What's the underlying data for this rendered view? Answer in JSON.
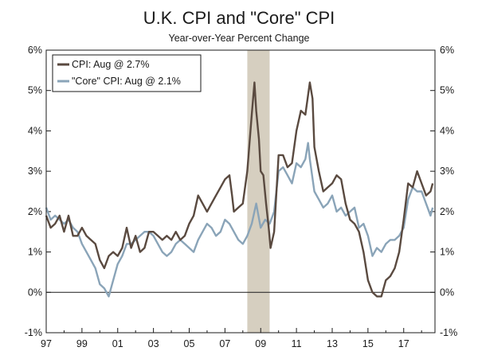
{
  "chart_data": {
    "type": "line",
    "title": "U.K. CPI and \"Core\" CPI",
    "subtitle": "Year-over-Year Percent Change",
    "ylim": [
      -1,
      6
    ],
    "xlim": [
      1997,
      2018.75
    ],
    "y_ticks": [
      {
        "value": 6,
        "label": "6%"
      },
      {
        "value": 5,
        "label": "5%"
      },
      {
        "value": 4,
        "label": "4%"
      },
      {
        "value": 3,
        "label": "3%"
      },
      {
        "value": 2,
        "label": "2%"
      },
      {
        "value": 1,
        "label": "1%"
      },
      {
        "value": 0,
        "label": "0%"
      },
      {
        "value": -1,
        "label": "-1%"
      }
    ],
    "x_ticks": [
      {
        "value": 1997,
        "label": "97"
      },
      {
        "value": 1999,
        "label": "99"
      },
      {
        "value": 2001,
        "label": "01"
      },
      {
        "value": 2003,
        "label": "03"
      },
      {
        "value": 2005,
        "label": "05"
      },
      {
        "value": 2007,
        "label": "07"
      },
      {
        "value": 2009,
        "label": "09"
      },
      {
        "value": 2011,
        "label": "11"
      },
      {
        "value": 2013,
        "label": "13"
      },
      {
        "value": 2015,
        "label": "15"
      },
      {
        "value": 2017,
        "label": "17"
      }
    ],
    "recession": {
      "start": 2008.25,
      "end": 2009.5
    },
    "zero_line": 0,
    "colors": {
      "cpi": "#5a4a40",
      "core": "#8aa4b8",
      "recession": "#d6cfc0",
      "axis": "#1a1a1a"
    },
    "series": [
      {
        "name": "CPI: Aug @ 2.7%",
        "key": "cpi",
        "points": [
          [
            1997.0,
            1.9
          ],
          [
            1997.25,
            1.6
          ],
          [
            1997.5,
            1.7
          ],
          [
            1997.75,
            1.9
          ],
          [
            1998.0,
            1.5
          ],
          [
            1998.25,
            1.9
          ],
          [
            1998.5,
            1.4
          ],
          [
            1998.75,
            1.4
          ],
          [
            1999.0,
            1.6
          ],
          [
            1999.25,
            1.4
          ],
          [
            1999.5,
            1.3
          ],
          [
            1999.75,
            1.2
          ],
          [
            2000.0,
            0.8
          ],
          [
            2000.25,
            0.6
          ],
          [
            2000.5,
            0.9
          ],
          [
            2000.75,
            1.0
          ],
          [
            2001.0,
            0.9
          ],
          [
            2001.25,
            1.1
          ],
          [
            2001.5,
            1.6
          ],
          [
            2001.75,
            1.1
          ],
          [
            2002.0,
            1.4
          ],
          [
            2002.25,
            1.0
          ],
          [
            2002.5,
            1.1
          ],
          [
            2002.75,
            1.5
          ],
          [
            2003.0,
            1.5
          ],
          [
            2003.25,
            1.4
          ],
          [
            2003.5,
            1.3
          ],
          [
            2003.75,
            1.4
          ],
          [
            2004.0,
            1.3
          ],
          [
            2004.25,
            1.5
          ],
          [
            2004.5,
            1.3
          ],
          [
            2004.75,
            1.4
          ],
          [
            2005.0,
            1.7
          ],
          [
            2005.25,
            1.9
          ],
          [
            2005.5,
            2.4
          ],
          [
            2005.75,
            2.2
          ],
          [
            2006.0,
            2.0
          ],
          [
            2006.25,
            2.2
          ],
          [
            2006.5,
            2.4
          ],
          [
            2006.75,
            2.6
          ],
          [
            2007.0,
            2.8
          ],
          [
            2007.25,
            2.9
          ],
          [
            2007.4,
            2.4
          ],
          [
            2007.5,
            2.0
          ],
          [
            2007.75,
            2.1
          ],
          [
            2008.0,
            2.2
          ],
          [
            2008.25,
            3.0
          ],
          [
            2008.5,
            4.4
          ],
          [
            2008.65,
            5.2
          ],
          [
            2008.75,
            4.5
          ],
          [
            2008.9,
            3.8
          ],
          [
            2009.0,
            3.0
          ],
          [
            2009.15,
            2.9
          ],
          [
            2009.3,
            2.2
          ],
          [
            2009.45,
            1.6
          ],
          [
            2009.55,
            1.1
          ],
          [
            2009.75,
            1.5
          ],
          [
            2010.0,
            3.4
          ],
          [
            2010.25,
            3.4
          ],
          [
            2010.5,
            3.1
          ],
          [
            2010.75,
            3.2
          ],
          [
            2011.0,
            4.0
          ],
          [
            2011.25,
            4.5
          ],
          [
            2011.5,
            4.4
          ],
          [
            2011.75,
            5.2
          ],
          [
            2011.9,
            4.8
          ],
          [
            2012.0,
            3.6
          ],
          [
            2012.25,
            3.0
          ],
          [
            2012.5,
            2.5
          ],
          [
            2012.75,
            2.6
          ],
          [
            2013.0,
            2.7
          ],
          [
            2013.25,
            2.9
          ],
          [
            2013.5,
            2.8
          ],
          [
            2013.75,
            2.2
          ],
          [
            2014.0,
            1.8
          ],
          [
            2014.25,
            1.7
          ],
          [
            2014.5,
            1.5
          ],
          [
            2014.75,
            1.0
          ],
          [
            2015.0,
            0.3
          ],
          [
            2015.25,
            0.0
          ],
          [
            2015.5,
            -0.1
          ],
          [
            2015.75,
            -0.1
          ],
          [
            2016.0,
            0.3
          ],
          [
            2016.25,
            0.4
          ],
          [
            2016.5,
            0.6
          ],
          [
            2016.75,
            1.0
          ],
          [
            2017.0,
            1.8
          ],
          [
            2017.25,
            2.7
          ],
          [
            2017.5,
            2.6
          ],
          [
            2017.75,
            3.0
          ],
          [
            2018.0,
            2.7
          ],
          [
            2018.25,
            2.4
          ],
          [
            2018.5,
            2.5
          ],
          [
            2018.62,
            2.7
          ]
        ]
      },
      {
        "name": "\"Core\" CPI: Aug @ 2.1%",
        "key": "core",
        "points": [
          [
            1997.0,
            2.1
          ],
          [
            1997.25,
            1.8
          ],
          [
            1997.5,
            1.9
          ],
          [
            1997.75,
            1.8
          ],
          [
            1998.0,
            1.7
          ],
          [
            1998.25,
            1.8
          ],
          [
            1998.5,
            1.6
          ],
          [
            1998.75,
            1.5
          ],
          [
            1999.0,
            1.2
          ],
          [
            1999.25,
            1.0
          ],
          [
            1999.5,
            0.8
          ],
          [
            1999.75,
            0.6
          ],
          [
            2000.0,
            0.2
          ],
          [
            2000.25,
            0.1
          ],
          [
            2000.5,
            -0.1
          ],
          [
            2000.75,
            0.3
          ],
          [
            2001.0,
            0.7
          ],
          [
            2001.25,
            0.9
          ],
          [
            2001.5,
            1.2
          ],
          [
            2001.75,
            1.2
          ],
          [
            2002.0,
            1.3
          ],
          [
            2002.25,
            1.4
          ],
          [
            2002.5,
            1.5
          ],
          [
            2002.75,
            1.5
          ],
          [
            2003.0,
            1.4
          ],
          [
            2003.25,
            1.2
          ],
          [
            2003.5,
            1.0
          ],
          [
            2003.75,
            0.9
          ],
          [
            2004.0,
            1.0
          ],
          [
            2004.25,
            1.2
          ],
          [
            2004.5,
            1.3
          ],
          [
            2004.75,
            1.2
          ],
          [
            2005.0,
            1.1
          ],
          [
            2005.25,
            1.0
          ],
          [
            2005.5,
            1.3
          ],
          [
            2005.75,
            1.5
          ],
          [
            2006.0,
            1.7
          ],
          [
            2006.25,
            1.6
          ],
          [
            2006.5,
            1.4
          ],
          [
            2006.75,
            1.5
          ],
          [
            2007.0,
            1.8
          ],
          [
            2007.25,
            1.7
          ],
          [
            2007.5,
            1.5
          ],
          [
            2007.75,
            1.3
          ],
          [
            2008.0,
            1.2
          ],
          [
            2008.25,
            1.4
          ],
          [
            2008.5,
            1.7
          ],
          [
            2008.75,
            2.2
          ],
          [
            2009.0,
            1.6
          ],
          [
            2009.25,
            1.8
          ],
          [
            2009.5,
            1.7
          ],
          [
            2009.75,
            2.0
          ],
          [
            2010.0,
            3.0
          ],
          [
            2010.25,
            3.1
          ],
          [
            2010.5,
            2.9
          ],
          [
            2010.75,
            2.7
          ],
          [
            2011.0,
            3.2
          ],
          [
            2011.25,
            3.1
          ],
          [
            2011.5,
            3.3
          ],
          [
            2011.65,
            3.7
          ],
          [
            2011.75,
            3.3
          ],
          [
            2012.0,
            2.5
          ],
          [
            2012.25,
            2.3
          ],
          [
            2012.5,
            2.1
          ],
          [
            2012.75,
            2.2
          ],
          [
            2013.0,
            2.4
          ],
          [
            2013.25,
            2.0
          ],
          [
            2013.5,
            2.1
          ],
          [
            2013.75,
            1.9
          ],
          [
            2014.0,
            2.0
          ],
          [
            2014.25,
            2.1
          ],
          [
            2014.5,
            1.6
          ],
          [
            2014.75,
            1.7
          ],
          [
            2015.0,
            1.4
          ],
          [
            2015.25,
            0.9
          ],
          [
            2015.5,
            1.1
          ],
          [
            2015.75,
            1.0
          ],
          [
            2016.0,
            1.2
          ],
          [
            2016.25,
            1.3
          ],
          [
            2016.5,
            1.3
          ],
          [
            2016.75,
            1.4
          ],
          [
            2017.0,
            1.6
          ],
          [
            2017.25,
            2.3
          ],
          [
            2017.5,
            2.6
          ],
          [
            2017.75,
            2.5
          ],
          [
            2018.0,
            2.5
          ],
          [
            2018.25,
            2.2
          ],
          [
            2018.5,
            1.9
          ],
          [
            2018.62,
            2.1
          ]
        ]
      }
    ]
  }
}
